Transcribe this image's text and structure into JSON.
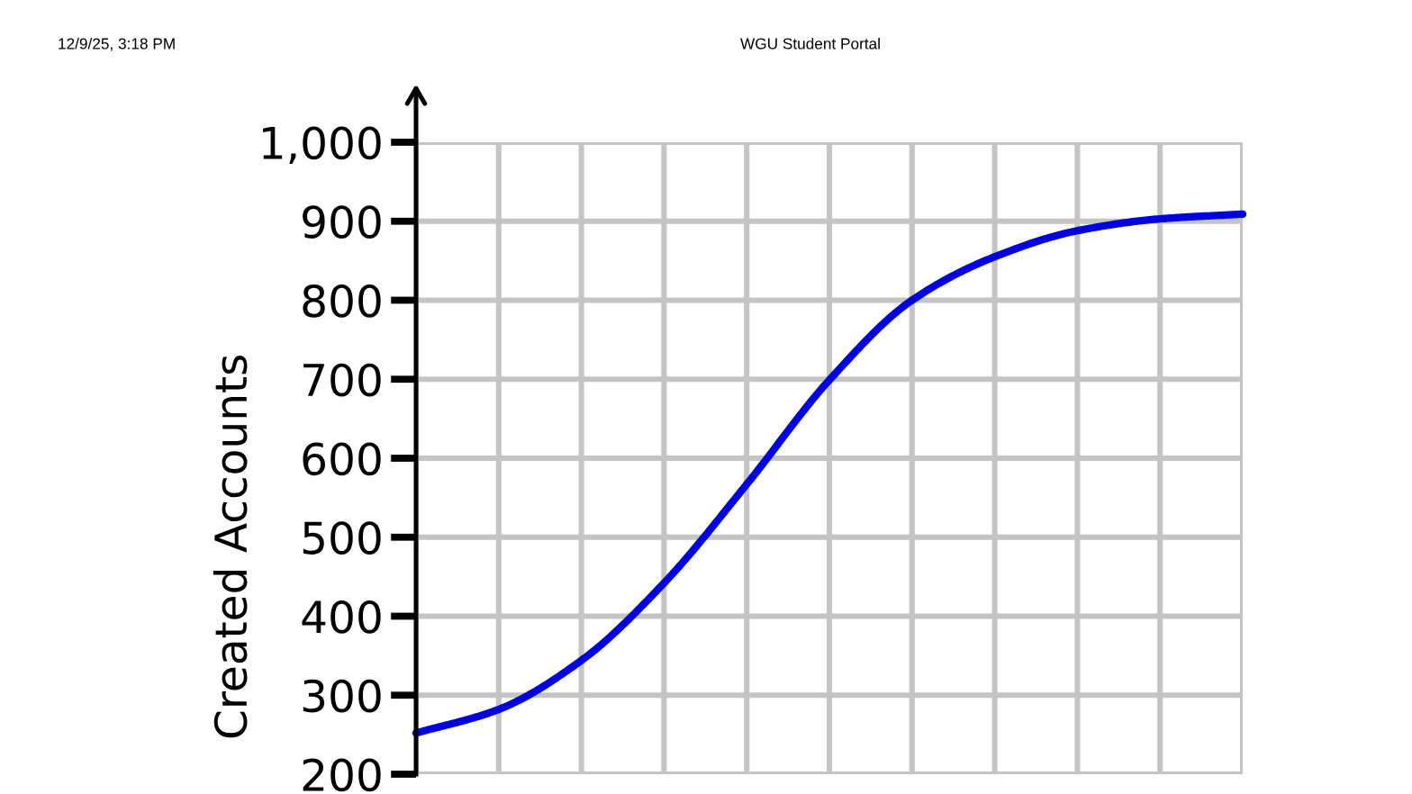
{
  "chart_data": {
    "type": "line",
    "ylabel": "Created Accounts",
    "annotations": [
      "12/9/25, 3:18 PM",
      "WGU Student Portal"
    ],
    "categories": [
      null,
      null,
      null,
      null,
      null,
      null,
      null,
      null,
      null,
      null,
      null
    ],
    "series": [
      {
        "color": "#0000e0",
        "values": [
          252,
          282,
          344,
          442,
          567,
          699,
          800,
          855,
          888,
          903,
          909
        ]
      }
    ],
    "ylim": [
      200,
      1000
    ],
    "yticks": [
      200,
      300,
      400,
      500,
      600,
      700,
      800,
      900,
      {
        "value": 1000,
        "label": "1,000"
      }
    ],
    "grid": true,
    "tick_labels": "y"
  }
}
